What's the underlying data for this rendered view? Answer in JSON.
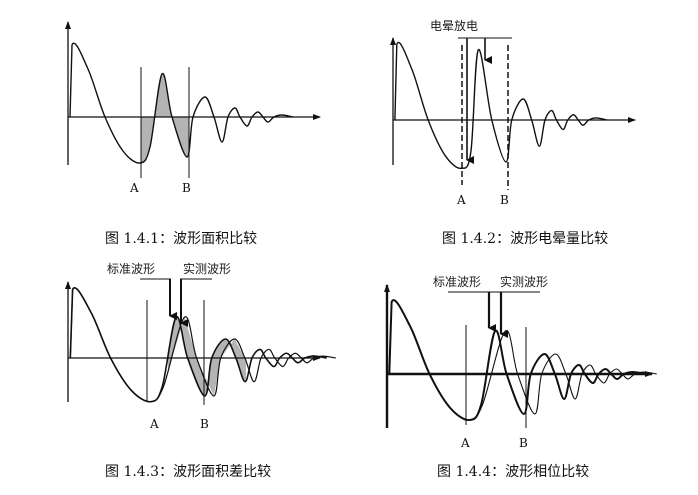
{
  "figures": [
    {
      "caption": "图 1.4.1：波形面积比较",
      "marker_a": "A",
      "marker_b": "B"
    },
    {
      "caption": "图 1.4.2：波形电晕量比较",
      "marker_a": "A",
      "marker_b": "B",
      "annotation": "电晕放电"
    },
    {
      "caption": "图 1.4.3：波形面积差比较",
      "marker_a": "A",
      "marker_b": "B",
      "label_standard": "标准波形",
      "label_measured": "实测波形"
    },
    {
      "caption": "图 1.4.4：波形相位比较",
      "marker_a": "A",
      "marker_b": "B",
      "label_standard": "标准波形",
      "label_measured": "实测波形"
    }
  ],
  "colors": {
    "line": "#111111",
    "shade": "#b4b4b4"
  }
}
